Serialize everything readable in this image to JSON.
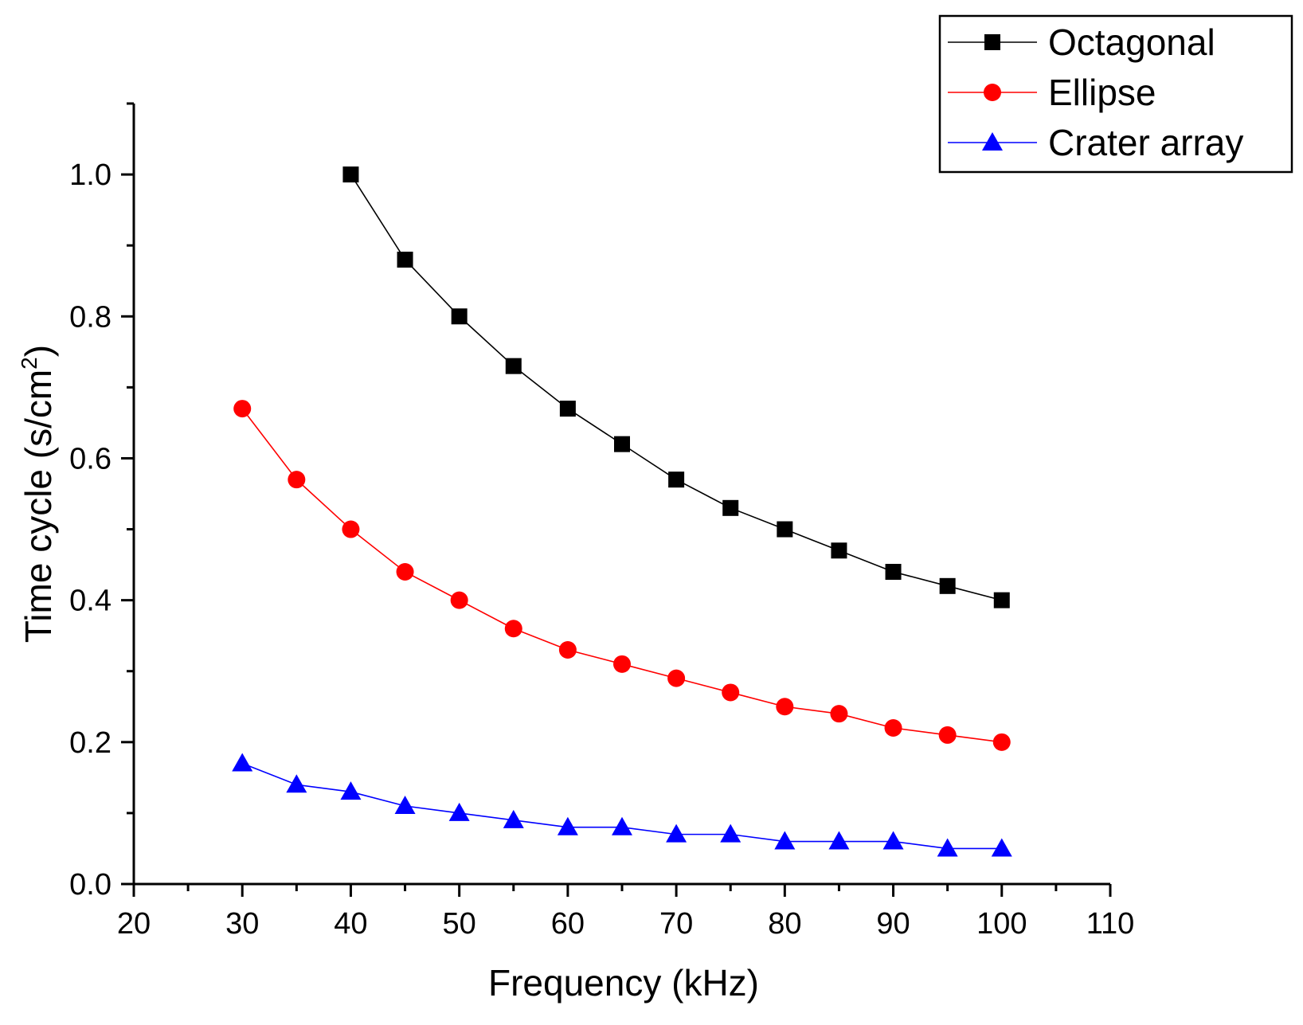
{
  "chart_data": {
    "type": "line",
    "title": "",
    "xlabel": "Frequency (kHz)",
    "ylabel_main": "Time cycle (s/cm",
    "ylabel_sup": "2",
    "ylabel_close": ")",
    "xlim": [
      20,
      110
    ],
    "ylim": [
      0.0,
      1.1
    ],
    "x_ticks": [
      20,
      30,
      40,
      50,
      60,
      70,
      80,
      90,
      100,
      110
    ],
    "x_tick_labels": [
      "20",
      "30",
      "40",
      "50",
      "60",
      "70",
      "80",
      "90",
      "100",
      "110"
    ],
    "y_ticks": [
      0.0,
      0.2,
      0.4,
      0.6,
      0.8,
      1.0
    ],
    "y_tick_labels": [
      "0.0",
      "0.2",
      "0.4",
      "0.6",
      "0.8",
      "1.0"
    ],
    "grid": false,
    "legend_position": "top-right",
    "series": [
      {
        "name": "Octagonal",
        "color": "#000000",
        "marker": "square",
        "x": [
          40,
          45,
          50,
          55,
          60,
          65,
          70,
          75,
          80,
          85,
          90,
          95,
          100
        ],
        "values": [
          1.0,
          0.88,
          0.8,
          0.73,
          0.67,
          0.62,
          0.57,
          0.53,
          0.5,
          0.47,
          0.44,
          0.42,
          0.4
        ]
      },
      {
        "name": "Ellipse",
        "color": "#ff0000",
        "marker": "circle",
        "x": [
          30,
          35,
          40,
          45,
          50,
          55,
          60,
          65,
          70,
          75,
          80,
          85,
          90,
          95,
          100
        ],
        "values": [
          0.67,
          0.57,
          0.5,
          0.44,
          0.4,
          0.36,
          0.33,
          0.31,
          0.29,
          0.27,
          0.25,
          0.24,
          0.22,
          0.21,
          0.2
        ]
      },
      {
        "name": "Crater array",
        "color": "#0000ff",
        "marker": "triangle",
        "x": [
          30,
          35,
          40,
          45,
          50,
          55,
          60,
          65,
          70,
          75,
          80,
          85,
          90,
          95,
          100
        ],
        "values": [
          0.17,
          0.14,
          0.13,
          0.11,
          0.1,
          0.09,
          0.08,
          0.08,
          0.07,
          0.07,
          0.06,
          0.06,
          0.06,
          0.05,
          0.05
        ]
      }
    ]
  }
}
